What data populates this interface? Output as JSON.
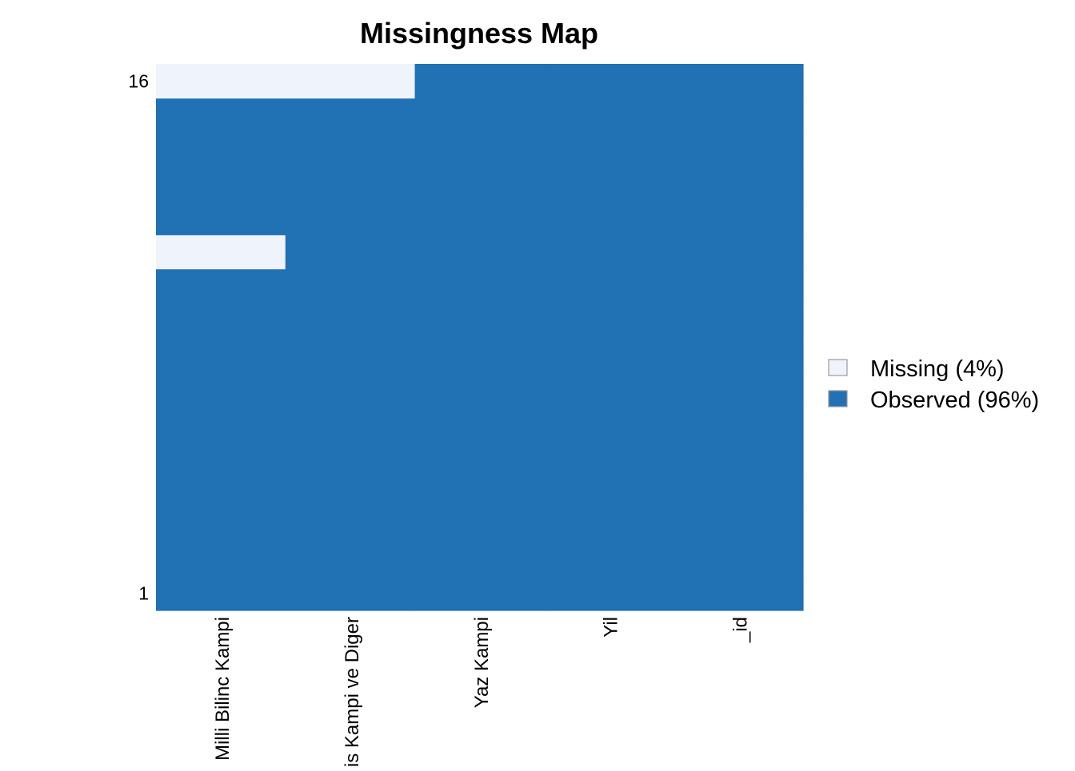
{
  "chart_data": {
    "type": "heatmap",
    "title": "Missingness Map",
    "columns": [
      "Milli Bilinc Kampi",
      "Kis Kampi ve Diger",
      "Yaz Kampi",
      "Yil",
      "_id"
    ],
    "rows": 16,
    "y_tick_labels": [
      "1",
      "16"
    ],
    "missing_cells": [
      {
        "row": 16,
        "column": "Milli Bilinc Kampi"
      },
      {
        "row": 16,
        "column": "Kis Kampi ve Diger"
      },
      {
        "row": 11,
        "column": "Milli Bilinc Kampi"
      }
    ],
    "legend": {
      "placement": "right",
      "entries": [
        {
          "label": "Missing (4%)",
          "color": "#EEF3FC"
        },
        {
          "label": "Observed (96%)",
          "color": "#2171B5"
        }
      ]
    }
  }
}
